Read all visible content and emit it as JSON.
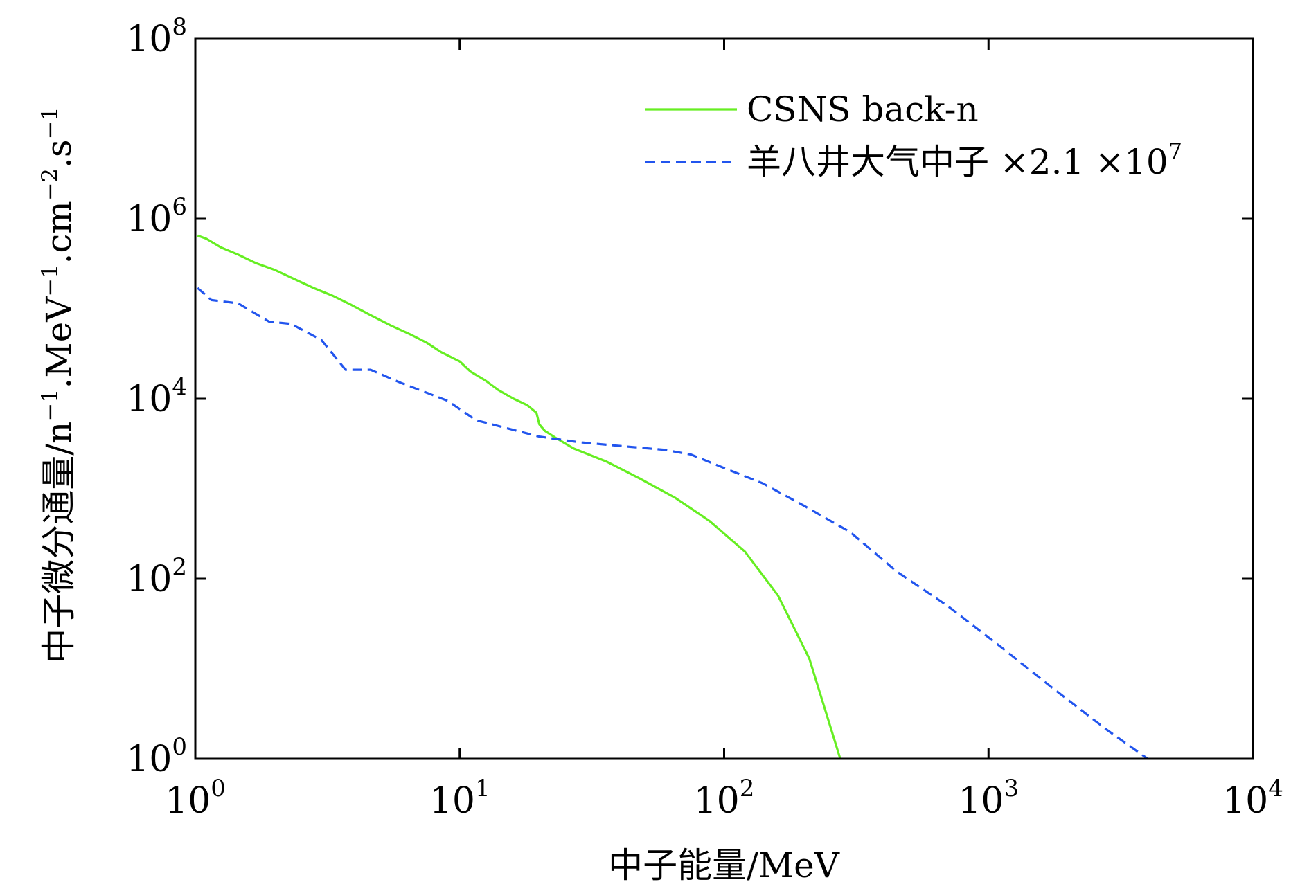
{
  "chart_data": {
    "type": "line",
    "xlabel": "中子能量/MeV",
    "ylabel_parts": [
      "中子微分通量/n",
      "−1",
      ".MeV",
      "−1",
      ".cm",
      "−2",
      ".s",
      "−1"
    ],
    "x_scale": "log",
    "y_scale": "log",
    "xlim": [
      1,
      10000
    ],
    "ylim": [
      1,
      100000000
    ],
    "x_ticks": [
      {
        "base": "10",
        "exp": "0",
        "value": 1
      },
      {
        "base": "10",
        "exp": "1",
        "value": 10
      },
      {
        "base": "10",
        "exp": "2",
        "value": 100
      },
      {
        "base": "10",
        "exp": "3",
        "value": 1000
      },
      {
        "base": "10",
        "exp": "4",
        "value": 10000
      }
    ],
    "y_ticks": [
      {
        "base": "10",
        "exp": "0",
        "value": 1
      },
      {
        "base": "10",
        "exp": "2",
        "value": 100
      },
      {
        "base": "10",
        "exp": "4",
        "value": 10000
      },
      {
        "base": "10",
        "exp": "6",
        "value": 1000000
      },
      {
        "base": "10",
        "exp": "8",
        "value": 100000000
      }
    ],
    "grid": false,
    "legend_position": "top-right",
    "series": [
      {
        "name": "CSNS back-n",
        "color": "#66ee22",
        "style": "solid",
        "points": [
          [
            1.02,
            650000
          ],
          [
            1.1,
            600000
          ],
          [
            1.25,
            480000
          ],
          [
            1.45,
            400000
          ],
          [
            1.7,
            320000
          ],
          [
            2.0,
            270000
          ],
          [
            2.4,
            210000
          ],
          [
            2.8,
            170000
          ],
          [
            3.3,
            140000
          ],
          [
            3.9,
            110000
          ],
          [
            4.6,
            85000
          ],
          [
            5.5,
            65000
          ],
          [
            6.5,
            52000
          ],
          [
            7.5,
            42000
          ],
          [
            8.5,
            33000
          ],
          [
            10.0,
            26000
          ],
          [
            11.0,
            20000
          ],
          [
            12.5,
            16000
          ],
          [
            14.0,
            12500
          ],
          [
            16.0,
            10000
          ],
          [
            18.0,
            8500
          ],
          [
            19.5,
            7000
          ],
          [
            20.0,
            5200
          ],
          [
            21.0,
            4400
          ],
          [
            23.0,
            3700
          ],
          [
            27.0,
            2800
          ],
          [
            36.0,
            2000
          ],
          [
            48.0,
            1300
          ],
          [
            65.0,
            800
          ],
          [
            88.0,
            440
          ],
          [
            120.0,
            200
          ],
          [
            160.0,
            65
          ],
          [
            210.0,
            13
          ],
          [
            245.0,
            3
          ],
          [
            275.0,
            1
          ]
        ]
      },
      {
        "name_parts": [
          "羊八井大气中子 ×2.1 ×10",
          "7"
        ],
        "color": "#2255ee",
        "style": "dashed",
        "points": [
          [
            1.02,
            170000
          ],
          [
            1.15,
            125000
          ],
          [
            1.45,
            115000
          ],
          [
            1.9,
            72000
          ],
          [
            2.3,
            68000
          ],
          [
            3.0,
            45000
          ],
          [
            3.7,
            21000
          ],
          [
            4.6,
            21000
          ],
          [
            6.0,
            15000
          ],
          [
            9.0,
            9500
          ],
          [
            11.5,
            5800
          ],
          [
            16.0,
            4500
          ],
          [
            20.0,
            3800
          ],
          [
            28.0,
            3300
          ],
          [
            40.0,
            3000
          ],
          [
            60.0,
            2700
          ],
          [
            75.0,
            2400
          ],
          [
            100.0,
            1700
          ],
          [
            140.0,
            1150
          ],
          [
            200.0,
            650
          ],
          [
            300.0,
            330
          ],
          [
            450.0,
            120
          ],
          [
            700.0,
            50
          ],
          [
            1100.0,
            18
          ],
          [
            1700.0,
            6.5
          ],
          [
            2800.0,
            2.1
          ],
          [
            4000.0,
            1
          ]
        ]
      }
    ]
  }
}
